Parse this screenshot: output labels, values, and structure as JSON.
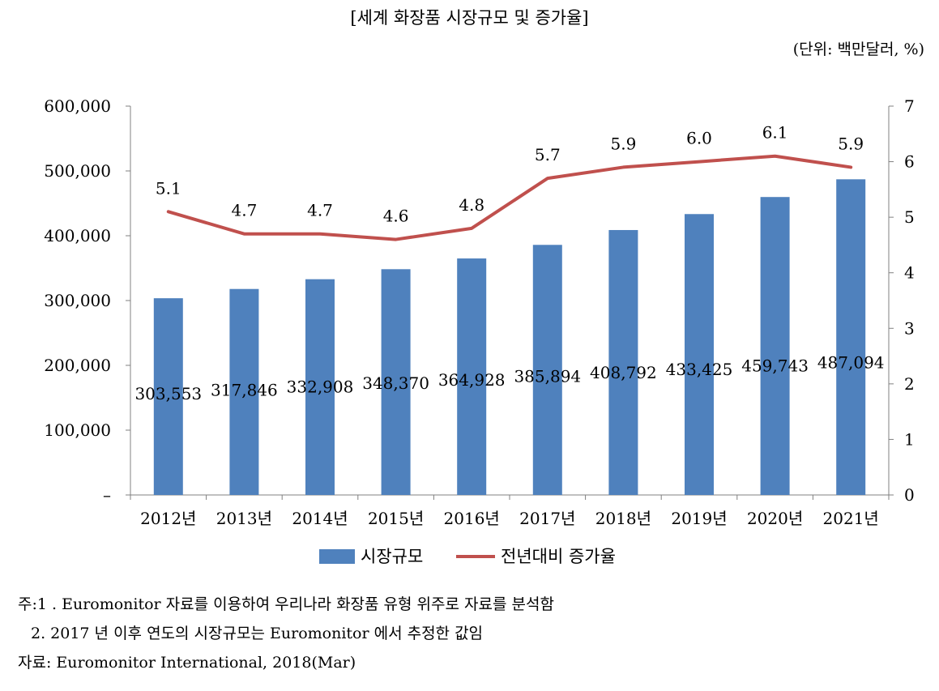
{
  "header": {
    "title": "[세계 화장품 시장규모 및 증가율]",
    "unit": "(단위: 백만달러, %)"
  },
  "chart_data": {
    "type": "bar+line",
    "categories": [
      "2012년",
      "2013년",
      "2014년",
      "2015년",
      "2016년",
      "2017년",
      "2018년",
      "2019년",
      "2020년",
      "2021년"
    ],
    "series": [
      {
        "name": "시장규모",
        "type": "bar",
        "axis": "left",
        "color": "#4F81BD",
        "values": [
          303553,
          317846,
          332908,
          348370,
          364928,
          385894,
          408792,
          433425,
          459743,
          487094
        ],
        "labels": [
          "303,553",
          "317,846",
          "332,908",
          "348,370",
          "364,928",
          "385,894",
          "408,792",
          "433,425",
          "459,743",
          "487,094"
        ]
      },
      {
        "name": "전년대비 증가율",
        "type": "line",
        "axis": "right",
        "color": "#C0504D",
        "values": [
          5.1,
          4.7,
          4.7,
          4.6,
          4.8,
          5.7,
          5.9,
          6.0,
          6.1,
          5.9
        ],
        "labels": [
          "5.1",
          "4.7",
          "4.7",
          "4.6",
          "4.8",
          "5.7",
          "5.9",
          "6.0",
          "6.1",
          "5.9"
        ]
      }
    ],
    "y_left": {
      "min": 0,
      "max": 600000,
      "ticks": [
        0,
        100000,
        200000,
        300000,
        400000,
        500000,
        600000
      ],
      "tick_labels": [
        "–",
        "100,000",
        "200,000",
        "300,000",
        "400,000",
        "500,000",
        "600,000"
      ]
    },
    "y_right": {
      "min": 0,
      "max": 7,
      "ticks": [
        0,
        1,
        2,
        3,
        4,
        5,
        6,
        7
      ],
      "tick_labels": [
        "0",
        "1",
        "2",
        "3",
        "4",
        "5",
        "6",
        "7"
      ]
    },
    "grid": false,
    "legend": "bottom"
  },
  "notes": {
    "line1": "주:1 . Euromonitor 자료를 이용하여 우리나라 화장품 유형 위주로 자료를 분석함",
    "line2": "2. 2017 년 이후 연도의 시장규모는 Euromonitor 에서 추정한 값임",
    "line3": "자료: Euromonitor International, 2018(Mar)"
  }
}
